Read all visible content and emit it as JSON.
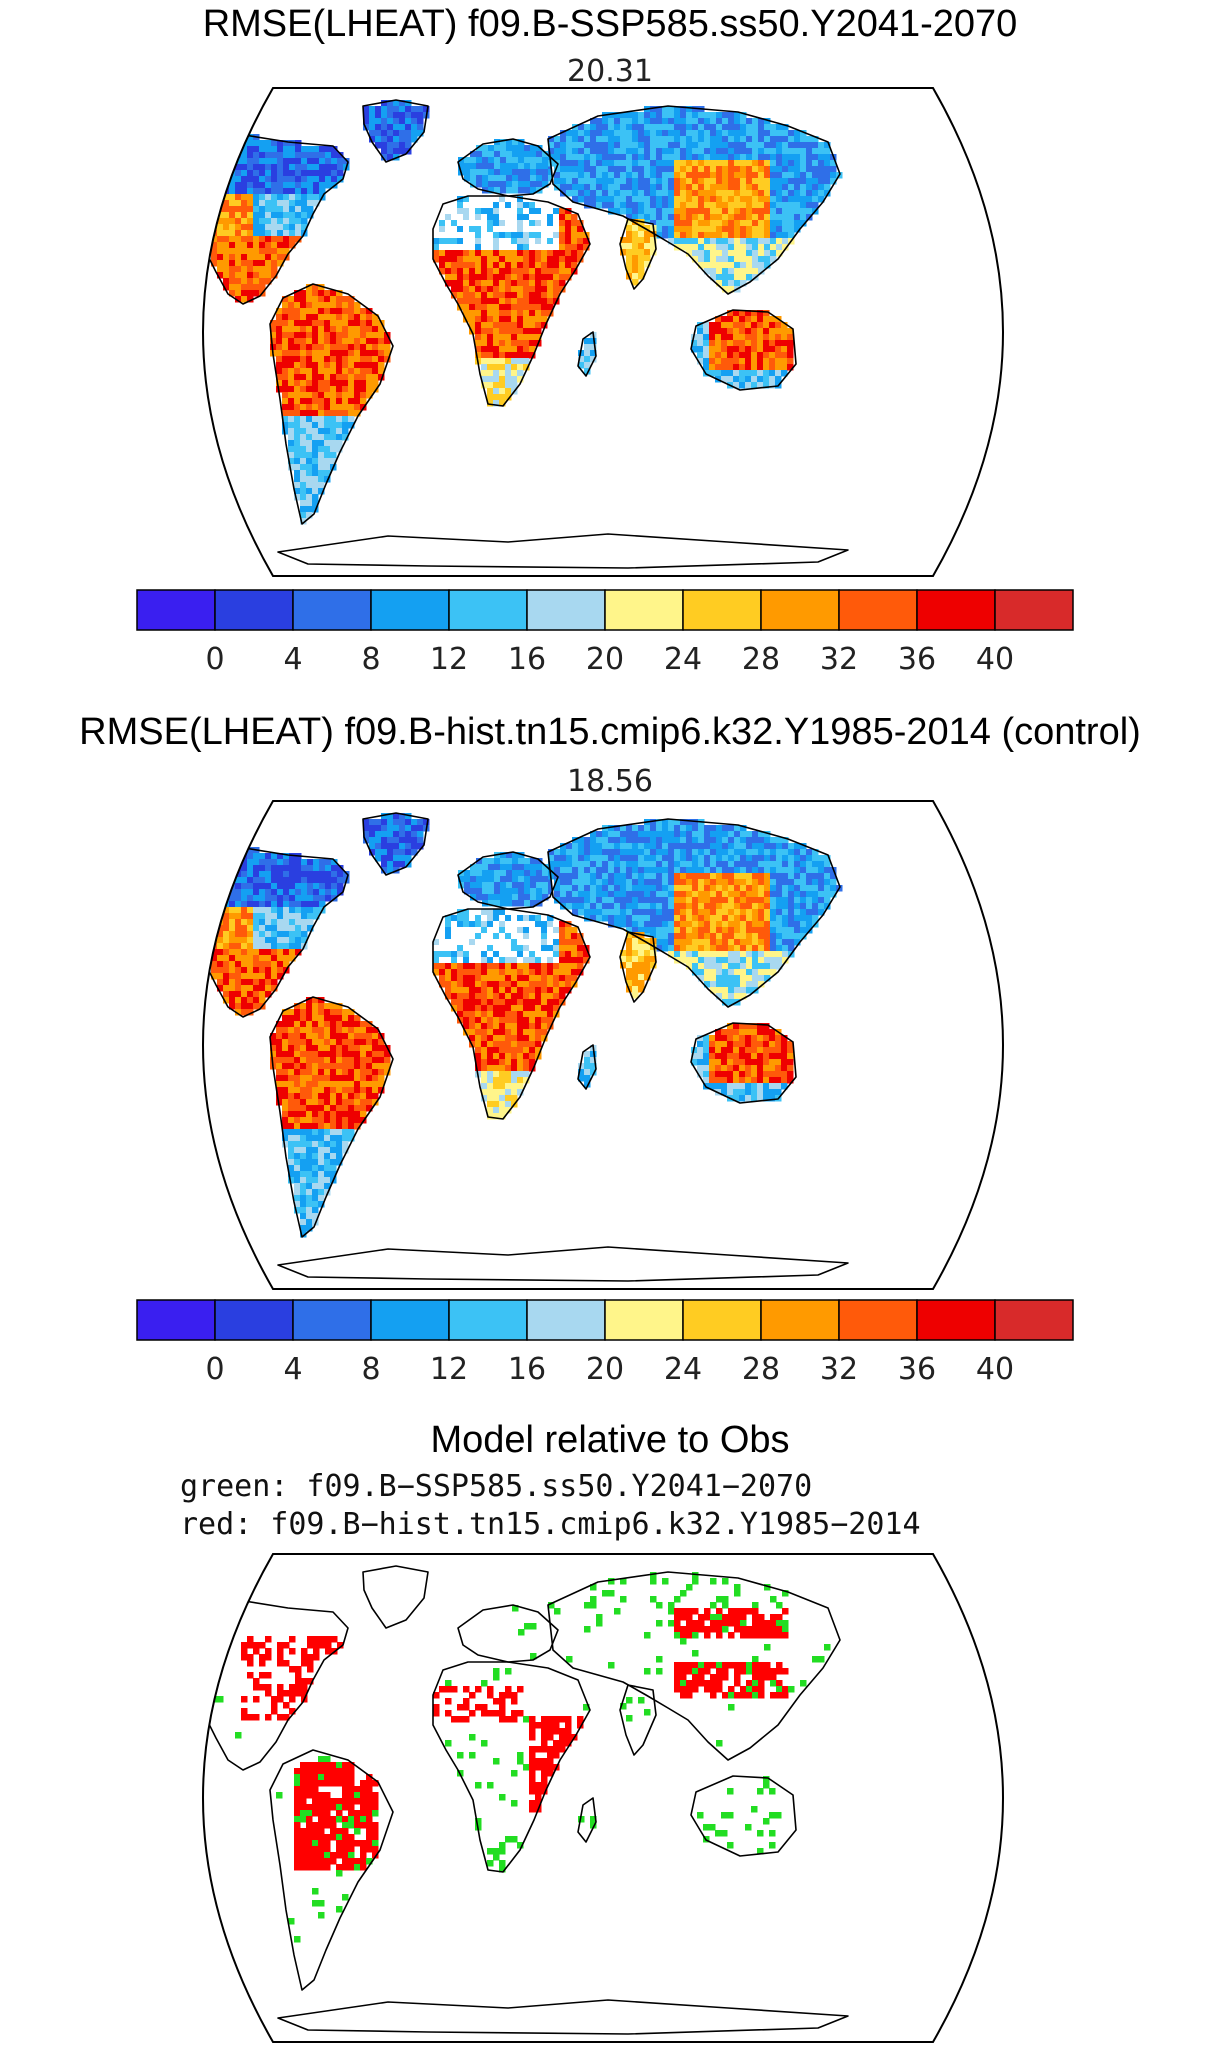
{
  "panels": [
    {
      "title": "RMSE(LHEAT) f09.B-SSP585.ss50.Y2041-2070",
      "value": "20.31"
    },
    {
      "title": "RMSE(LHEAT) f09.B-hist.tn15.cmip6.k32.Y1985-2014 (control)",
      "value": "18.56"
    }
  ],
  "colorbar": {
    "colors": [
      "#3a1ff0",
      "#2a3fe0",
      "#2f6fe8",
      "#14a0f2",
      "#3cc2f5",
      "#a8d8f0",
      "#fff58a",
      "#ffcc22",
      "#ff9a00",
      "#ff5a0a",
      "#ee0000",
      "#d82a2a"
    ],
    "ticks": [
      "0",
      "4",
      "8",
      "12",
      "16",
      "20",
      "24",
      "28",
      "32",
      "36",
      "40"
    ]
  },
  "comparison": {
    "title": "Model relative to Obs",
    "line1": "green: f09.B−SSP585.ss50.Y2041−2070",
    "line2": "red: f09.B−hist.tn15.cmip6.k32.Y1985−2014",
    "green_color": "#22dd22",
    "red_color": "#ff0000"
  }
}
